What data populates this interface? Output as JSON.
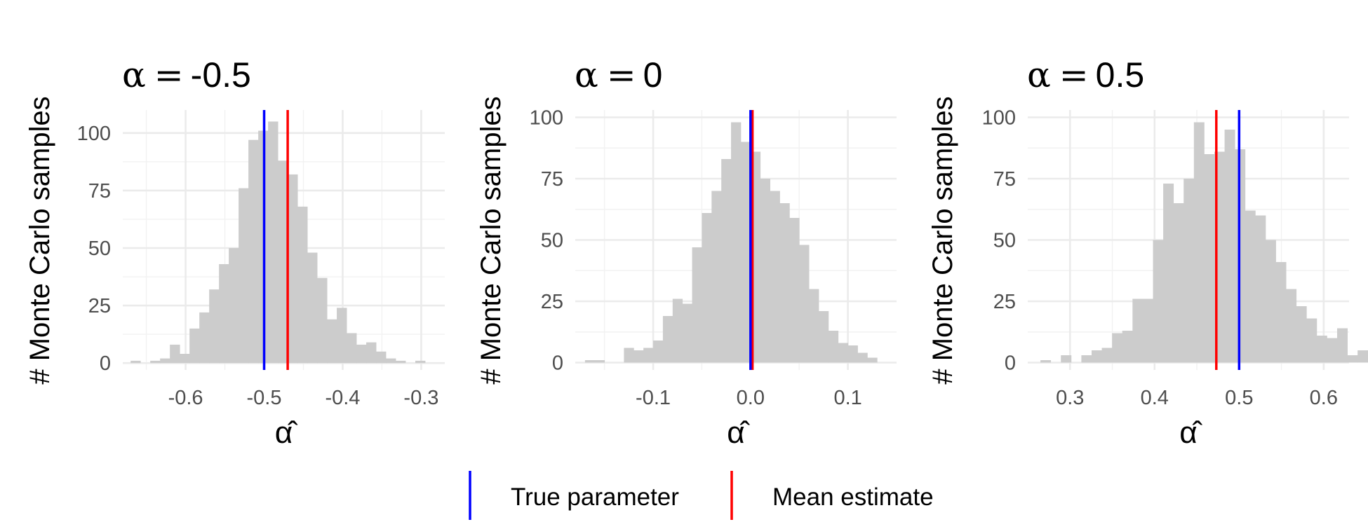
{
  "legend": {
    "items": [
      {
        "label": "True parameter",
        "color": "#0000ff"
      },
      {
        "label": "Mean estimate",
        "color": "#ff0000"
      }
    ]
  },
  "chart_data": [
    {
      "type": "histogram",
      "title_symbol": "α",
      "title_eq": "=",
      "title_value": "-0.5",
      "xlabel": "α̂",
      "ylabel": "# Monte Carlo samples",
      "xlim": [
        -0.68,
        -0.27
      ],
      "ylim": [
        -3,
        110
      ],
      "xticks": [
        -0.6,
        -0.5,
        -0.4,
        -0.3
      ],
      "xtick_labels": [
        "-0.6",
        "-0.5",
        "-0.4",
        "-0.3"
      ],
      "yticks": [
        0,
        25,
        50,
        75,
        100
      ],
      "ytick_labels": [
        "0",
        "25",
        "50",
        "75",
        "100"
      ],
      "bin_start": -0.67,
      "bin_width": 0.0125,
      "counts": [
        1,
        0,
        1,
        2,
        8,
        4,
        15,
        22,
        32,
        43,
        50,
        76,
        97,
        101,
        105,
        88,
        82,
        68,
        48,
        37,
        19,
        24,
        13,
        8,
        9,
        5,
        2,
        1,
        0,
        1
      ],
      "true_parameter": -0.5,
      "mean_estimate": -0.47,
      "grid": true,
      "legend": "bottom"
    },
    {
      "type": "histogram",
      "title_symbol": "α",
      "title_eq": "=",
      "title_value": "0",
      "xlabel": "α̂",
      "ylabel": "# Monte Carlo samples",
      "xlim": [
        -0.18,
        0.15
      ],
      "ylim": [
        -3,
        103
      ],
      "xticks": [
        -0.1,
        0.0,
        0.1
      ],
      "xtick_labels": [
        "-0.1",
        "0.0",
        "0.1"
      ],
      "yticks": [
        0,
        25,
        50,
        75,
        100
      ],
      "ytick_labels": [
        "0",
        "25",
        "50",
        "75",
        "100"
      ],
      "bin_start": -0.17,
      "bin_width": 0.01,
      "counts": [
        1,
        1,
        0,
        0,
        6,
        5,
        6,
        9,
        19,
        26,
        24,
        47,
        61,
        70,
        83,
        98,
        90,
        86,
        75,
        70,
        65,
        59,
        48,
        30,
        21,
        13,
        8,
        7,
        4,
        2
      ],
      "true_parameter": 0.0,
      "mean_estimate": 0.002,
      "grid": true,
      "legend": "bottom"
    },
    {
      "type": "histogram",
      "title_symbol": "α",
      "title_eq": "=",
      "title_value": "0.5",
      "xlabel": "α̂",
      "ylabel": "# Monte Carlo samples",
      "xlim": [
        0.25,
        0.63
      ],
      "ylim": [
        -3,
        103
      ],
      "xticks": [
        0.3,
        0.4,
        0.5,
        0.6
      ],
      "xtick_labels": [
        "0.3",
        "0.4",
        "0.5",
        "0.6"
      ],
      "yticks": [
        0,
        25,
        50,
        75,
        100
      ],
      "ytick_labels": [
        "0",
        "25",
        "50",
        "75",
        "100"
      ],
      "bin_start": 0.265,
      "bin_width": 0.0121,
      "counts": [
        1,
        0,
        3,
        0,
        3,
        5,
        6,
        12,
        13,
        26,
        26,
        50,
        73,
        65,
        75,
        98,
        85,
        86,
        95,
        87,
        62,
        60,
        50,
        41,
        30,
        23,
        18,
        11,
        10,
        14,
        3,
        5
      ],
      "true_parameter": 0.5,
      "mean_estimate": 0.473,
      "grid": true,
      "legend": "bottom"
    }
  ]
}
